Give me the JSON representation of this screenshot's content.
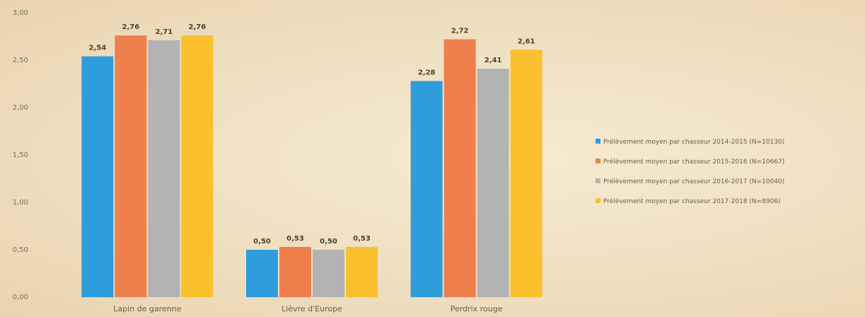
{
  "chart_data": {
    "type": "bar",
    "title": "",
    "xlabel": "",
    "ylabel": "",
    "ylim": [
      0,
      3.0
    ],
    "yticks": [
      "0,00",
      "0,50",
      "1,00",
      "1,50",
      "2,00",
      "2,50",
      "3,00"
    ],
    "grid": false,
    "legend_position": "right",
    "categories": [
      "Lapin de garenne",
      "Lièvre d'Europe",
      "Perdrix rouge"
    ],
    "series": [
      {
        "name": "Prélèvement moyen par chasseur 2014-2015 (N=10130)",
        "color": "#2e9ddb",
        "values": [
          2.54,
          0.5,
          2.28
        ],
        "labels": [
          "2,54",
          "0,50",
          "2,28"
        ]
      },
      {
        "name": "Prélèvement moyen par chasseur 2015-2016 (N=10667)",
        "color": "#ef7f4d",
        "values": [
          2.76,
          0.53,
          2.72
        ],
        "labels": [
          "2,76",
          "0,53",
          "2,72"
        ]
      },
      {
        "name": "Prélèvement moyen par chasseur 2016-2017 (N=10040)",
        "color": "#b3b3b3",
        "values": [
          2.71,
          0.5,
          2.41
        ],
        "labels": [
          "2,71",
          "0,50",
          "2,41"
        ]
      },
      {
        "name": "Prélèvement moyen par chasseur 2017-2018 (N=8906)",
        "color": "#fbc02d",
        "values": [
          2.76,
          0.53,
          2.61
        ],
        "labels": [
          "2,76",
          "0,53",
          "2,61"
        ]
      }
    ]
  }
}
